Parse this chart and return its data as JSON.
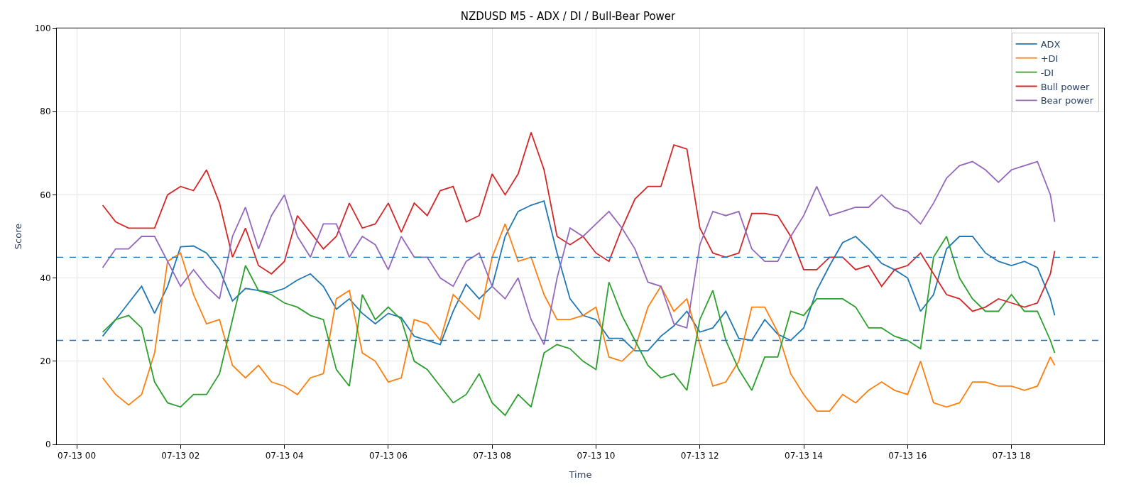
{
  "chart_data": {
    "type": "line",
    "title": "NZDUSD M5 - ADX / DI / Bull-Bear Power",
    "xlabel": "Time",
    "ylabel": "Score",
    "x": [
      "--07-13T00:30",
      "--07-13T00:45",
      "--07-13T01:00",
      "--07-13T01:15",
      "--07-13T01:30",
      "--07-13T01:45",
      "--07-13T02:00",
      "--07-13T02:15",
      "--07-13T02:30",
      "--07-13T02:45",
      "--07-13T03:00",
      "--07-13T03:15",
      "--07-13T03:30",
      "--07-13T03:45",
      "--07-13T04:00",
      "--07-13T04:15",
      "--07-13T04:30",
      "--07-13T04:45",
      "--07-13T05:00",
      "--07-13T05:15",
      "--07-13T05:30",
      "--07-13T05:45",
      "--07-13T06:00",
      "--07-13T06:15",
      "--07-13T06:30",
      "--07-13T06:45",
      "--07-13T07:00",
      "--07-13T07:15",
      "--07-13T07:30",
      "--07-13T07:45",
      "--07-13T08:00",
      "--07-13T08:15",
      "--07-13T08:30",
      "--07-13T08:45",
      "--07-13T09:00",
      "--07-13T09:15",
      "--07-13T09:30",
      "--07-13T09:45",
      "--07-13T10:00",
      "--07-13T10:15",
      "--07-13T10:30",
      "--07-13T10:45",
      "--07-13T11:00",
      "--07-13T11:15",
      "--07-13T11:30",
      "--07-13T11:45",
      "--07-13T12:00",
      "--07-13T12:15",
      "--07-13T12:30",
      "--07-13T12:45",
      "--07-13T13:00",
      "--07-13T13:15",
      "--07-13T13:30",
      "--07-13T13:45",
      "--07-13T14:00",
      "--07-13T14:15",
      "--07-13T14:30",
      "--07-13T14:45",
      "--07-13T15:00",
      "--07-13T15:15",
      "--07-13T15:30",
      "--07-13T15:45",
      "--07-13T16:00",
      "--07-13T16:15",
      "--07-13T16:30",
      "--07-13T16:45",
      "--07-13T17:00",
      "--07-13T17:15",
      "--07-13T17:30",
      "--07-13T17:45",
      "--07-13T18:00",
      "--07-13T18:15",
      "--07-13T18:30",
      "--07-13T18:45",
      "--07-13T18:50"
    ],
    "series": [
      {
        "name": "ADX",
        "color": "#1f77b4",
        "values": [
          26,
          30,
          34,
          38,
          31.5,
          38,
          47.5,
          47.7,
          46,
          42,
          34.5,
          37.5,
          37,
          36.5,
          37.5,
          39.5,
          41,
          38,
          32.5,
          35,
          31.5,
          29,
          31.5,
          30.5,
          26,
          25,
          24,
          32,
          38.5,
          35,
          38,
          50,
          56,
          57.5,
          58.5,
          46,
          35,
          31,
          30,
          25.5,
          25.5,
          22.5,
          22.5,
          26,
          28.5,
          32,
          27,
          28,
          32,
          25.5,
          25,
          30,
          26.5,
          25,
          28,
          37,
          43,
          48.5,
          50,
          47,
          43.5,
          42,
          40,
          32,
          36,
          47,
          50,
          50,
          46,
          44,
          43,
          44,
          42.5,
          35,
          31
        ]
      },
      {
        "name": "+DI",
        "color": "#ff7f0e",
        "values": [
          16,
          12,
          9.5,
          12,
          22,
          44,
          46,
          36,
          29,
          30,
          19,
          16,
          19,
          15,
          14,
          12,
          16,
          17,
          35,
          37,
          22,
          20,
          15,
          16,
          30,
          29,
          25,
          36,
          33,
          30,
          45,
          53,
          44,
          45,
          36,
          30,
          30,
          31,
          33,
          21,
          20,
          23,
          33,
          38,
          32,
          35,
          24,
          14,
          15,
          20,
          33,
          33,
          27,
          17,
          12,
          8,
          8,
          12,
          10,
          13,
          15,
          13,
          12,
          20,
          10,
          9,
          10,
          15,
          15,
          14,
          14,
          13,
          14,
          21,
          19
        ]
      },
      {
        "name": "-DI",
        "color": "#2ca02c",
        "values": [
          27,
          30,
          31,
          28,
          15,
          10,
          9,
          12,
          12,
          17,
          30,
          43,
          37,
          36,
          34,
          33,
          31,
          30,
          18,
          14,
          36,
          30,
          33,
          30,
          20,
          18,
          14,
          10,
          12,
          17,
          10,
          7,
          12,
          9,
          22,
          24,
          23,
          20,
          18,
          39,
          31,
          25,
          19,
          16,
          17,
          13,
          30,
          37,
          25,
          18,
          13,
          21,
          21,
          32,
          31,
          35,
          35,
          35,
          33,
          28,
          28,
          26,
          25,
          23,
          45,
          50,
          40,
          35,
          32,
          32,
          36,
          32,
          32,
          25,
          22
        ]
      },
      {
        "name": "Bull power",
        "color": "#d62728",
        "values": [
          57.5,
          53.5,
          52,
          52,
          52,
          60,
          62,
          61,
          66,
          58,
          45,
          52,
          43,
          41,
          44,
          55,
          51,
          47,
          50,
          58,
          52,
          53,
          58,
          51,
          58,
          55,
          61,
          62,
          53.5,
          55,
          65,
          60,
          65,
          75,
          66,
          50,
          48,
          50,
          46,
          44,
          52,
          59,
          62,
          62,
          72,
          71,
          52,
          46,
          45,
          46,
          55.5,
          55.5,
          55,
          50,
          42,
          42,
          45,
          45,
          42,
          43,
          38,
          42,
          43,
          46,
          41,
          36,
          35,
          32,
          33,
          35,
          34,
          33,
          34,
          41,
          46.5
        ]
      },
      {
        "name": "Bear power",
        "color": "#9467bd",
        "values": [
          42.5,
          47,
          47,
          50,
          50,
          44,
          38,
          42,
          38,
          35,
          50,
          57,
          47,
          55,
          60,
          50,
          45,
          53,
          53,
          45,
          50,
          48,
          42,
          50,
          45,
          45,
          40,
          38,
          44,
          46,
          38,
          35,
          40,
          30,
          24,
          40,
          52,
          50,
          53,
          56,
          52,
          47,
          39,
          38,
          29,
          28,
          48,
          56,
          55,
          56,
          47,
          44,
          44,
          50,
          55,
          62,
          55,
          56,
          57,
          57,
          60,
          57,
          56,
          53,
          58,
          64,
          67,
          68,
          66,
          63,
          66,
          67,
          68,
          60,
          53.5
        ]
      }
    ],
    "xlim": [
      "--07-12T23:37",
      "--07-13T19:47"
    ],
    "xticks": [
      {
        "value": "--07-13T00:00",
        "label": "07-13 00"
      },
      {
        "value": "--07-13T02:00",
        "label": "07-13 02"
      },
      {
        "value": "--07-13T04:00",
        "label": "07-13 04"
      },
      {
        "value": "--07-13T06:00",
        "label": "07-13 06"
      },
      {
        "value": "--07-13T08:00",
        "label": "07-13 08"
      },
      {
        "value": "--07-13T10:00",
        "label": "07-13 10"
      },
      {
        "value": "--07-13T12:00",
        "label": "07-13 12"
      },
      {
        "value": "--07-13T14:00",
        "label": "07-13 14"
      },
      {
        "value": "--07-13T16:00",
        "label": "07-13 16"
      },
      {
        "value": "--07-13T18:00",
        "label": "07-13 18"
      }
    ],
    "ylim": [
      0,
      100
    ],
    "yticks": [
      0,
      20,
      40,
      60,
      80,
      100
    ],
    "ref_lines": [
      {
        "axis": "y",
        "value": 45,
        "color": "#1f77b4",
        "line_style": "dashed"
      },
      {
        "axis": "y",
        "value": 25,
        "color": "#1f77b4",
        "line_style": "dashed"
      }
    ],
    "grid": true,
    "legend": "top right",
    "line_style": "solid",
    "marker": "none"
  }
}
